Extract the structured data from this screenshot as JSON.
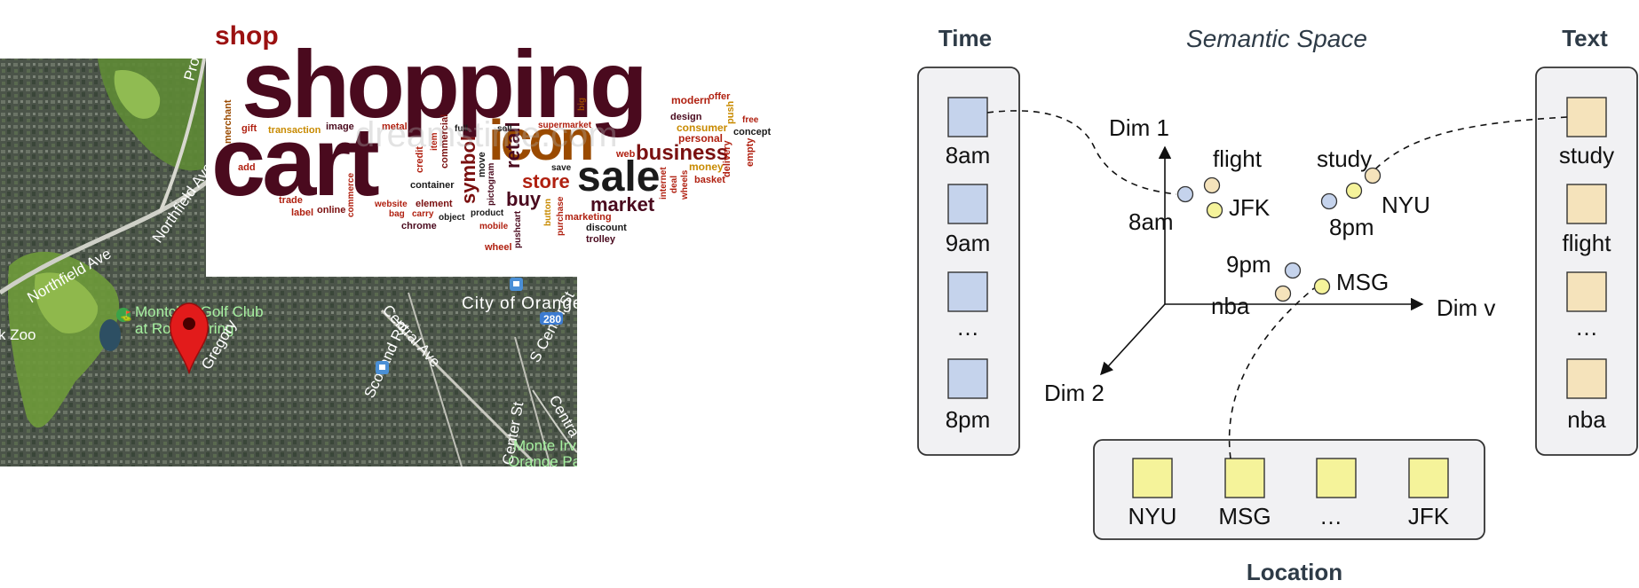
{
  "map": {
    "labels": {
      "golf_club_line1": "Montclair Golf Club",
      "golf_club_line2": "at Rock Spring",
      "zoo": "k Zoo",
      "northfield_ave_left": "Northfield Ave",
      "northfield_ave_right": "Northfield Ave",
      "city": "City of Orange",
      "central_ave": "Central Ave",
      "scotland_rd": "Scotland Rd",
      "s_center_st": "S Center St",
      "center_st": "Center St",
      "centra": "Centra",
      "gregory": "Gregory",
      "prospect": "Prosp",
      "monte_irvin_line1": "Monte Irv",
      "monte_irvin_line2": "Orange Pa",
      "road_shield": "280"
    }
  },
  "wordcloud": {
    "watermark": "dreamstime.com",
    "words": [
      {
        "text": "shop",
        "color": "#9b1111"
      },
      {
        "text": "shopping",
        "color": "#4a0a1e"
      },
      {
        "text": "cart",
        "color": "#4a0a1e"
      },
      {
        "text": "icon",
        "color": "#9a4a00"
      },
      {
        "text": "sale",
        "color": "#1a1a1a"
      },
      {
        "text": "business",
        "color": "#7a1010"
      },
      {
        "text": "store",
        "color": "#b02010"
      },
      {
        "text": "buy",
        "color": "#4a0a1e"
      },
      {
        "text": "market",
        "color": "#4a0a1e"
      },
      {
        "text": "symbol",
        "color": "#7a1010"
      },
      {
        "text": "retail",
        "color": "#4a0a1e"
      },
      {
        "text": "merchant",
        "color": "#9a4a00"
      },
      {
        "text": "gift",
        "color": "#b02010"
      },
      {
        "text": "transaction",
        "color": "#c88a00"
      },
      {
        "text": "image",
        "color": "#4a0a1e"
      },
      {
        "text": "metal",
        "color": "#b02010"
      },
      {
        "text": "full",
        "color": "#1a1a1a"
      },
      {
        "text": "sell",
        "color": "#1a1a1a"
      },
      {
        "text": "supermarket",
        "color": "#b02010"
      },
      {
        "text": "big",
        "color": "#9a4a00"
      },
      {
        "text": "modern",
        "color": "#b02010"
      },
      {
        "text": "offer",
        "color": "#b02010"
      },
      {
        "text": "design",
        "color": "#4a0a1e"
      },
      {
        "text": "consumer",
        "color": "#c88a00"
      },
      {
        "text": "personal",
        "color": "#b02010"
      },
      {
        "text": "push",
        "color": "#c88a00"
      },
      {
        "text": "free",
        "color": "#b02010"
      },
      {
        "text": "concept",
        "color": "#1a1a1a"
      },
      {
        "text": "money",
        "color": "#c88a00"
      },
      {
        "text": "basket",
        "color": "#b02010"
      },
      {
        "text": "delivery",
        "color": "#b02010"
      },
      {
        "text": "empty",
        "color": "#b02010"
      },
      {
        "text": "add",
        "color": "#b02010"
      },
      {
        "text": "credit",
        "color": "#b02010"
      },
      {
        "text": "item",
        "color": "#b02010"
      },
      {
        "text": "commercial",
        "color": "#7a1010"
      },
      {
        "text": "container",
        "color": "#1a1a1a"
      },
      {
        "text": "move",
        "color": "#1a1a1a"
      },
      {
        "text": "pictogram",
        "color": "#4a0a1e"
      },
      {
        "text": "web",
        "color": "#b02010"
      },
      {
        "text": "save",
        "color": "#1a1a1a"
      },
      {
        "text": "internet",
        "color": "#b02010"
      },
      {
        "text": "deal",
        "color": "#b02010"
      },
      {
        "text": "wheels",
        "color": "#b02010"
      },
      {
        "text": "trade",
        "color": "#b02010"
      },
      {
        "text": "label",
        "color": "#b02010"
      },
      {
        "text": "online",
        "color": "#7a1010"
      },
      {
        "text": "commerce",
        "color": "#b02010"
      },
      {
        "text": "website",
        "color": "#b02010"
      },
      {
        "text": "bag",
        "color": "#b02010"
      },
      {
        "text": "carry",
        "color": "#b02010"
      },
      {
        "text": "element",
        "color": "#7a1010"
      },
      {
        "text": "object",
        "color": "#1a1a1a"
      },
      {
        "text": "product",
        "color": "#1a1a1a"
      },
      {
        "text": "mobile",
        "color": "#b02010"
      },
      {
        "text": "pushcart",
        "color": "#4a0a1e"
      },
      {
        "text": "button",
        "color": "#c88a00"
      },
      {
        "text": "purchase",
        "color": "#b02010"
      },
      {
        "text": "marketing",
        "color": "#b02010"
      },
      {
        "text": "discount",
        "color": "#1a1a1a"
      },
      {
        "text": "trolley",
        "color": "#4a0a1e"
      },
      {
        "text": "chrome",
        "color": "#4a0a1e"
      },
      {
        "text": "wheel",
        "color": "#b02010"
      }
    ]
  },
  "diagram": {
    "time": {
      "title": "Time",
      "items": [
        "8am",
        "9am",
        "…",
        "8pm"
      ]
    },
    "text": {
      "title": "Text",
      "items": [
        "study",
        "flight",
        "…",
        "nba"
      ]
    },
    "location": {
      "title": "Location",
      "items": [
        "NYU",
        "MSG",
        "…",
        "JFK"
      ]
    },
    "semantic_space": {
      "title": "Semantic Space",
      "axes": {
        "dim1": "Dim 1",
        "dim2": "Dim 2",
        "dimv": "Dim v"
      },
      "point_labels": {
        "flight": "flight",
        "jfk": "JFK",
        "eight_am": "8am",
        "study": "study",
        "nyu": "NYU",
        "eight_pm": "8pm",
        "nine_pm": "9pm",
        "msg": "MSG",
        "nba": "nba"
      }
    },
    "colors": {
      "time_square": "#c5d3ec",
      "text_square": "#f5e3bb",
      "location_square": "#f5f39a",
      "panel_fill": "#f1f1f3",
      "panel_stroke": "#333333"
    }
  }
}
